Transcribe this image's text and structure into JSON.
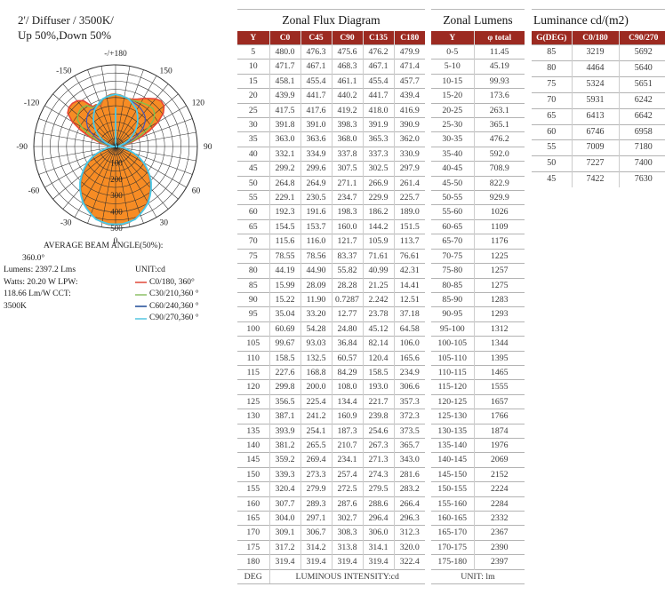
{
  "title": {
    "line1": "2'/ Diffuser / 3500K/",
    "line2": "Up 50%,Down 50%"
  },
  "polar": {
    "angle_labels": [
      "0",
      "30",
      "60",
      "90",
      "120",
      "150",
      "-/+180",
      "-150",
      "-120",
      "-90",
      "-60",
      "-30"
    ],
    "radial_ticks": [
      "0",
      "100",
      "200",
      "300",
      "400",
      "500"
    ],
    "beam_angle_label": "AVERAGE BEAM ANGLE(50%):",
    "beam_angle_value": "360.0°",
    "stats": [
      "Lumens: 2397.2 Lms",
      "Watts: 20.20 W LPW:",
      "118.66 Lm/W CCT:",
      "3500K"
    ],
    "unit_label": "UNIT:cd",
    "legend": [
      {
        "label": "C0/180, 360°",
        "color": "#e8756a"
      },
      {
        "label": "C30/210,360 °",
        "color": "#a9d08d"
      },
      {
        "label": "C60/240,360 °",
        "color": "#5577b0"
      },
      {
        "label": "C90/270,360 °",
        "color": "#7fd4e8"
      }
    ],
    "colors": {
      "fill": "#f78c24",
      "c0_180": "#e84434",
      "c30_210": "#7fc04d",
      "c60_240": "#4a55b0",
      "c90_270": "#49c9e8",
      "grid": "#2f2f2f"
    }
  },
  "chart_data": {
    "type": "line",
    "subtype": "polar-intensity-distribution",
    "unit": "cd",
    "r_ticks": [
      0,
      100,
      200,
      300,
      400,
      500
    ],
    "r_max": 500,
    "angle_tick_step_deg": 10,
    "angle_label_step_deg": 30,
    "plotted_planes": [
      "C0/180",
      "C30/210",
      "C60/240",
      "C90/270"
    ],
    "angle_deg": [
      5,
      10,
      15,
      20,
      25,
      30,
      35,
      40,
      45,
      50,
      55,
      60,
      65,
      70,
      75,
      80,
      85,
      90,
      95,
      100,
      105,
      110,
      115,
      120,
      125,
      130,
      135,
      140,
      145,
      150,
      155,
      160,
      165,
      170,
      175,
      180
    ],
    "series": [
      {
        "name": "C0",
        "values": [
          "480.0",
          "471.7",
          "458.1",
          "439.9",
          "417.5",
          "391.8",
          "363.0",
          "332.1",
          "299.2",
          "264.8",
          "229.1",
          "192.3",
          "154.5",
          "115.6",
          "78.55",
          "44.19",
          "15.99",
          "15.22",
          "35.04",
          "60.69",
          "99.67",
          "158.5",
          "227.6",
          "299.8",
          "356.5",
          "387.1",
          "393.9",
          "381.2",
          "359.2",
          "339.3",
          "320.4",
          "307.7",
          "304.0",
          "309.1",
          "317.2",
          "319.4"
        ]
      },
      {
        "name": "C45",
        "values": [
          "476.3",
          "467.1",
          "455.4",
          "441.7",
          "417.6",
          "391.0",
          "363.6",
          "334.9",
          "299.6",
          "264.9",
          "230.5",
          "191.6",
          "153.7",
          "116.0",
          "78.56",
          "44.90",
          "28.09",
          "11.90",
          "33.20",
          "54.28",
          "93.03",
          "132.5",
          "168.8",
          "200.0",
          "225.4",
          "241.2",
          "254.1",
          "265.5",
          "269.4",
          "273.3",
          "279.9",
          "289.3",
          "297.1",
          "306.7",
          "314.2",
          "319.4"
        ]
      },
      {
        "name": "C90",
        "values": [
          "475.6",
          "468.3",
          "461.1",
          "440.2",
          "419.2",
          "398.3",
          "368.0",
          "337.8",
          "307.5",
          "271.1",
          "234.7",
          "198.3",
          "160.0",
          "121.7",
          "83.37",
          "55.82",
          "28.28",
          "0.7287",
          "12.77",
          "24.80",
          "36.84",
          "60.57",
          "84.29",
          "108.0",
          "134.4",
          "160.9",
          "187.3",
          "210.7",
          "234.1",
          "257.4",
          "272.5",
          "287.6",
          "302.7",
          "308.3",
          "313.8",
          "319.4"
        ]
      },
      {
        "name": "C135",
        "values": [
          "476.2",
          "467.1",
          "455.4",
          "441.7",
          "418.0",
          "391.9",
          "365.3",
          "337.3",
          "302.5",
          "266.9",
          "229.9",
          "186.2",
          "144.2",
          "105.9",
          "71.61",
          "40.99",
          "21.25",
          "2.242",
          "23.78",
          "45.12",
          "82.14",
          "120.4",
          "158.5",
          "193.0",
          "221.7",
          "239.8",
          "254.6",
          "267.3",
          "271.3",
          "274.3",
          "279.5",
          "288.6",
          "296.4",
          "306.0",
          "314.1",
          "319.4"
        ]
      },
      {
        "name": "C180",
        "values": [
          "479.9",
          "471.4",
          "457.7",
          "439.4",
          "416.9",
          "390.9",
          "362.0",
          "330.9",
          "297.9",
          "261.4",
          "225.7",
          "189.0",
          "151.5",
          "113.7",
          "76.61",
          "42.31",
          "14.41",
          "12.51",
          "37.18",
          "64.58",
          "106.0",
          "165.6",
          "234.9",
          "306.6",
          "357.3",
          "372.3",
          "373.5",
          "365.7",
          "343.0",
          "281.6",
          "283.2",
          "266.4",
          "296.3",
          "312.3",
          "320.0",
          "322.4"
        ]
      }
    ]
  },
  "zonal_flux": {
    "title": "Zonal Flux Diagram",
    "headers": [
      "Y",
      "C0",
      "C45",
      "C90",
      "C135",
      "C180"
    ],
    "footer_deg": "DEG",
    "footer_label": "LUMINOUS INTENSITY:cd"
  },
  "zonal_lumens": {
    "title": "Zonal Lumens",
    "headers": [
      "Y",
      "φ total"
    ],
    "footer": "UNIT: lm",
    "rows": [
      [
        "0-5",
        "11.45"
      ],
      [
        "5-10",
        "45.19"
      ],
      [
        "10-15",
        "99.93"
      ],
      [
        "15-20",
        "173.6"
      ],
      [
        "20-25",
        "263.1"
      ],
      [
        "25-30",
        "365.1"
      ],
      [
        "30-35",
        "476.2"
      ],
      [
        "35-40",
        "592.0"
      ],
      [
        "40-45",
        "708.9"
      ],
      [
        "45-50",
        "822.9"
      ],
      [
        "50-55",
        "929.9"
      ],
      [
        "55-60",
        "1026"
      ],
      [
        "60-65",
        "1109"
      ],
      [
        "65-70",
        "1176"
      ],
      [
        "70-75",
        "1225"
      ],
      [
        "75-80",
        "1257"
      ],
      [
        "80-85",
        "1275"
      ],
      [
        "85-90",
        "1283"
      ],
      [
        "90-95",
        "1293"
      ],
      [
        "95-100",
        "1312"
      ],
      [
        "100-105",
        "1344"
      ],
      [
        "105-110",
        "1395"
      ],
      [
        "110-115",
        "1465"
      ],
      [
        "115-120",
        "1555"
      ],
      [
        "120-125",
        "1657"
      ],
      [
        "125-130",
        "1766"
      ],
      [
        "130-135",
        "1874"
      ],
      [
        "135-140",
        "1976"
      ],
      [
        "140-145",
        "2069"
      ],
      [
        "145-150",
        "2152"
      ],
      [
        "150-155",
        "2224"
      ],
      [
        "155-160",
        "2284"
      ],
      [
        "160-165",
        "2332"
      ],
      [
        "165-170",
        "2367"
      ],
      [
        "170-175",
        "2390"
      ],
      [
        "175-180",
        "2397"
      ]
    ]
  },
  "luminance": {
    "title": "Luminance cd/(m2)",
    "headers": [
      "G(DEG)",
      "C0/180",
      "C90/270"
    ],
    "rows": [
      [
        "85",
        "3219",
        "5692"
      ],
      [
        "80",
        "4464",
        "5640"
      ],
      [
        "75",
        "5324",
        "5651"
      ],
      [
        "70",
        "5931",
        "6242"
      ],
      [
        "65",
        "6413",
        "6642"
      ],
      [
        "60",
        "6746",
        "6958"
      ],
      [
        "55",
        "7009",
        "7180"
      ],
      [
        "50",
        "7227",
        "7400"
      ],
      [
        "45",
        "7422",
        "7630"
      ]
    ]
  }
}
